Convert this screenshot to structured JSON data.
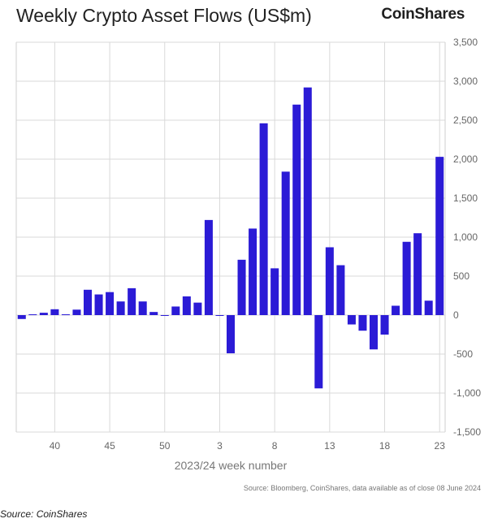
{
  "header": {
    "title": "Weekly Crypto Asset Flows (US$m)",
    "brand": "CoinShares"
  },
  "footer": {
    "source_inner": "Source: Bloomberg, CoinShares, data available as of close 08 June 2024",
    "source_outer": "Source: CoinShares"
  },
  "colors": {
    "bar": "#2b1bd6",
    "grid": "#d9d9d9",
    "axis": "#cfcfcf"
  },
  "chart_data": {
    "type": "bar",
    "title": "Weekly Crypto Asset Flows (US$m)",
    "xlabel": "2023/24 week number",
    "ylabel": "",
    "ylim": [
      -1500,
      3500
    ],
    "y_ticks": [
      3500,
      3000,
      2500,
      2000,
      1500,
      1000,
      500,
      0,
      -500,
      -1000,
      -1500
    ],
    "y_tick_labels": [
      "3,500",
      "3,000",
      "2,500",
      "2,000",
      "1,500",
      "1,000",
      "500",
      "0",
      "-500",
      "-1,000",
      "-1,500"
    ],
    "x_tick_labels": [
      {
        "index": 3,
        "label": "40"
      },
      {
        "index": 8,
        "label": "45"
      },
      {
        "index": 13,
        "label": "50"
      },
      {
        "index": 18,
        "label": "3"
      },
      {
        "index": 23,
        "label": "8"
      },
      {
        "index": 28,
        "label": "13"
      },
      {
        "index": 33,
        "label": "18"
      },
      {
        "index": 38,
        "label": "23"
      }
    ],
    "grid": true,
    "categories": [
      "37",
      "38",
      "39",
      "40",
      "41",
      "42",
      "43",
      "44",
      "45",
      "46",
      "47",
      "48",
      "49",
      "50",
      "51",
      "52",
      "1",
      "2",
      "3",
      "4",
      "5",
      "6",
      "7",
      "8",
      "9",
      "10",
      "11",
      "12",
      "13",
      "14",
      "15",
      "16",
      "17",
      "18",
      "19",
      "20",
      "21",
      "22",
      "23"
    ],
    "values": [
      -50,
      10,
      30,
      75,
      10,
      70,
      325,
      265,
      295,
      175,
      345,
      175,
      40,
      -10,
      110,
      240,
      160,
      1220,
      -10,
      -490,
      710,
      1110,
      2460,
      600,
      1840,
      2700,
      2920,
      -940,
      870,
      640,
      -120,
      -200,
      -440,
      -250,
      120,
      940,
      1050,
      185,
      2030
    ]
  }
}
